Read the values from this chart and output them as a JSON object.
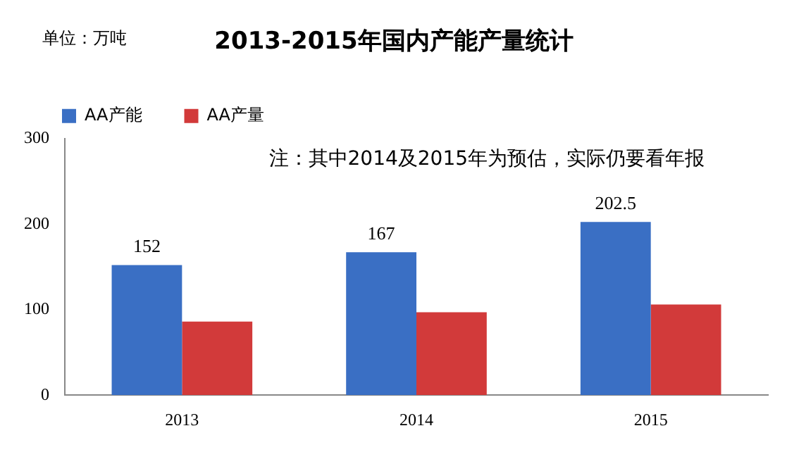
{
  "chart_data": {
    "type": "bar",
    "title": "2013-2015年国内产能产量统计",
    "ylabel": "单位：万吨",
    "annotations": [
      "注：其中2014及2015年为预估，实际仍要看年报"
    ],
    "categories": [
      "2013",
      "2014",
      "2015"
    ],
    "series": [
      {
        "name": "AA产能",
        "color": "#3a6fc4",
        "values": [
          152,
          167,
          202.5
        ],
        "value_labels": [
          "152",
          "167",
          "202.5"
        ]
      },
      {
        "name": "AA产量",
        "color": "#d23a3a",
        "values": [
          86,
          97,
          106
        ]
      }
    ],
    "ylim": [
      0,
      300
    ],
    "yticks": [
      0,
      100,
      200,
      300
    ],
    "grid": false,
    "legend": "top left"
  }
}
